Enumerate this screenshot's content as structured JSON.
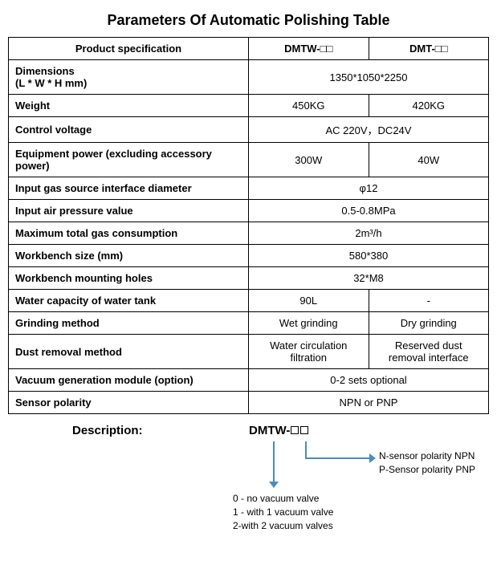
{
  "title": "Parameters Of Automatic Polishing Table",
  "headers": {
    "spec": "Product specification",
    "colA": "DMTW-□□",
    "colB": "DMT-□□"
  },
  "rows": [
    {
      "label": "Dimensions\n(L * W * H mm)",
      "span": true,
      "val": "1350*1050*2250"
    },
    {
      "label": "Weight",
      "a": "450KG",
      "b": "420KG"
    },
    {
      "label": "Control voltage",
      "span": true,
      "val": "AC 220V，DC24V"
    },
    {
      "label": "Equipment power (excluding accessory power)",
      "a": "300W",
      "b": "40W"
    },
    {
      "label": "Input gas source interface diameter",
      "span": true,
      "val": "φ12"
    },
    {
      "label": "Input air pressure value",
      "span": true,
      "val": "0.5-0.8MPa"
    },
    {
      "label": "Maximum total gas consumption",
      "span": true,
      "val": "2m³/h"
    },
    {
      "label": "Workbench size (mm)",
      "span": true,
      "val": "580*380"
    },
    {
      "label": "Workbench mounting holes",
      "span": true,
      "val": "32*M8"
    },
    {
      "label": "Water capacity of water tank",
      "a": "90L",
      "b": "-"
    },
    {
      "label": "Grinding method",
      "a": "Wet grinding",
      "b": "Dry grinding"
    },
    {
      "label": "Dust removal method",
      "a": "Water circulation filtration",
      "b": "Reserved dust removal interface"
    },
    {
      "label": "Vacuum generation module (option)",
      "span": true,
      "val": "0-2 sets optional"
    },
    {
      "label": "Sensor polarity",
      "span": true,
      "val": "NPN or PNP"
    }
  ],
  "description": {
    "label": "Description:",
    "code": "DMTW-□□",
    "right1": "N-sensor polarity NPN",
    "right2": "P-Sensor polarity PNP",
    "bottom1": "0 - no vacuum valve",
    "bottom2": "1 - with 1 vacuum valve",
    "bottom3": "2-with 2 vacuum valves"
  },
  "colors": {
    "arrow": "#4a8bc2",
    "border": "#000000",
    "text": "#000000",
    "bg": "#ffffff"
  }
}
